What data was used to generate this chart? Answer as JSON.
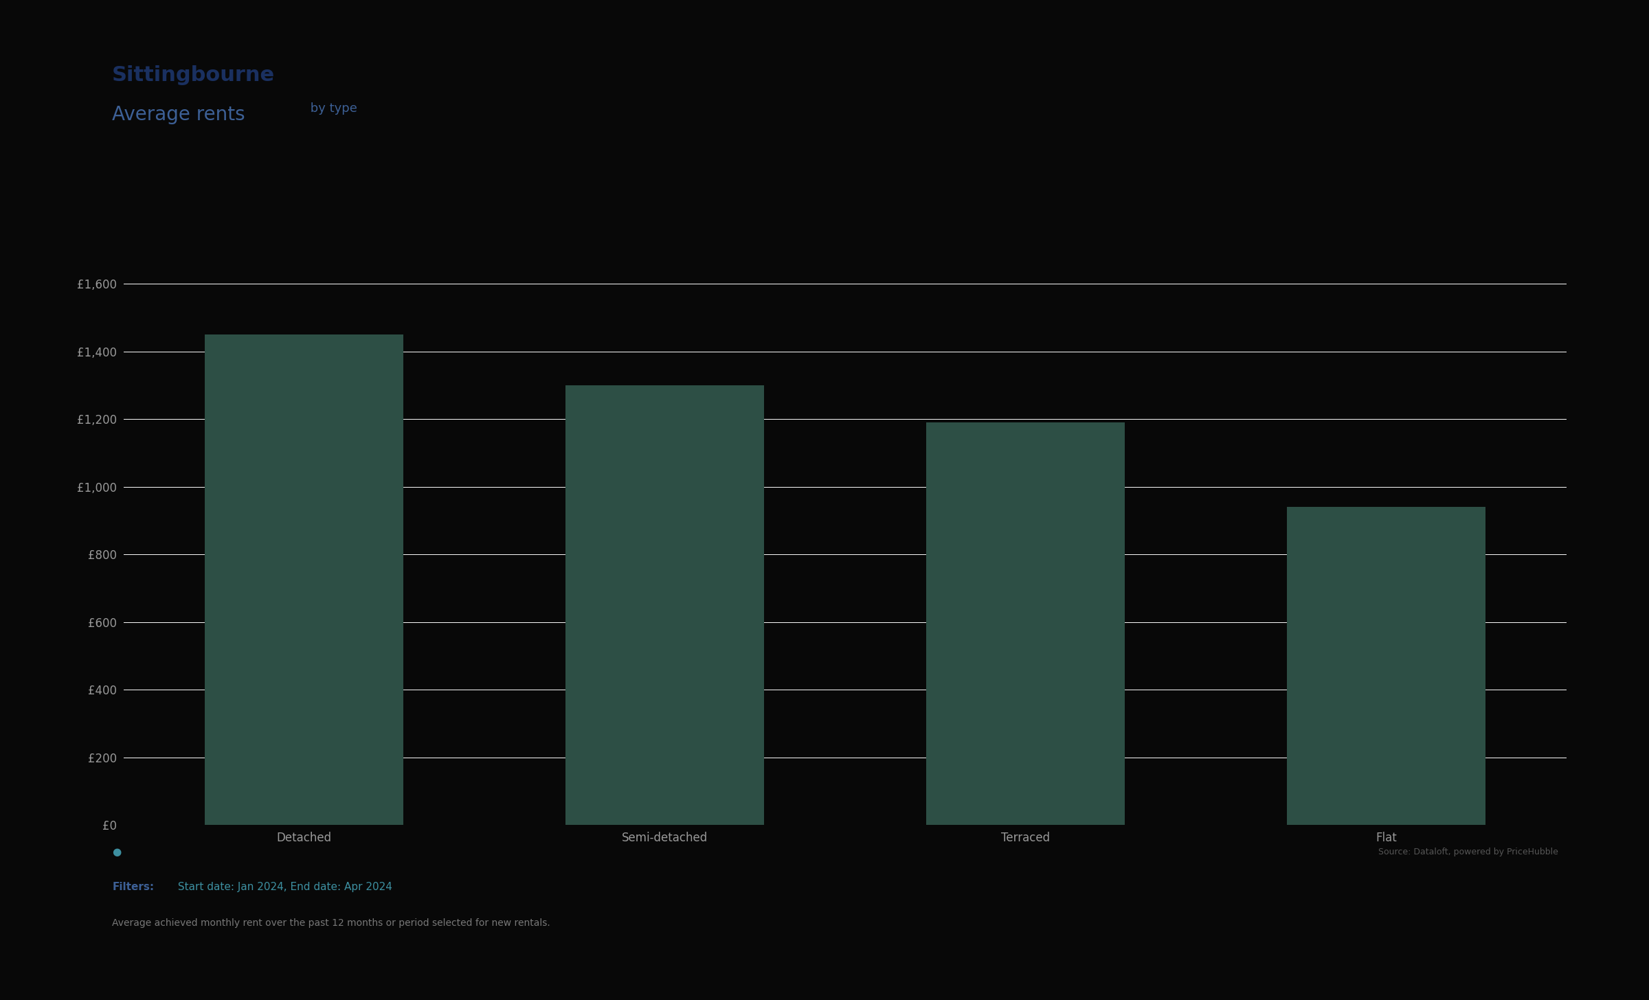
{
  "title": "Sittingbourne",
  "subtitle_large": "Average rents",
  "subtitle_small": " by type",
  "categories": [
    "Detached",
    "Semi-detached",
    "Terraced",
    "Flat"
  ],
  "values": [
    1450,
    1300,
    1190,
    940
  ],
  "bar_color": "#2D4F45",
  "background_color": "#080808",
  "title_color": "#1a3060",
  "subtitle_large_color": "#3d6096",
  "subtitle_small_color": "#3d6096",
  "tick_label_color": "#999999",
  "grid_color": "#ffffff",
  "ylim": [
    0,
    1700
  ],
  "yticks": [
    0,
    200,
    400,
    600,
    800,
    1000,
    1200,
    1400,
    1600
  ],
  "ytick_labels": [
    "£0",
    "£200",
    "£400",
    "£600",
    "£800",
    "£1,000",
    "£1,200",
    "£1,400",
    "£1,600"
  ],
  "filter_label": "Filters:",
  "filter_value": " Start date: Jan 2024, End date: Apr 2024",
  "filter_label_color": "#3d6096",
  "filter_value_color": "#3d8fa0",
  "footnote_text": "Average achieved monthly rent over the past 12 months or period selected for new rentals.",
  "footnote_color": "#777777",
  "source_text": "Source: Dataloft, powered by PriceHubble",
  "source_color": "#555555",
  "dot_color": "#3d8fa0",
  "title_fontsize": 22,
  "subtitle_large_fontsize": 20,
  "subtitle_small_fontsize": 13,
  "tick_fontsize": 12,
  "xlabel_fontsize": 12,
  "filter_fontsize": 11,
  "footnote_fontsize": 10,
  "source_fontsize": 9
}
